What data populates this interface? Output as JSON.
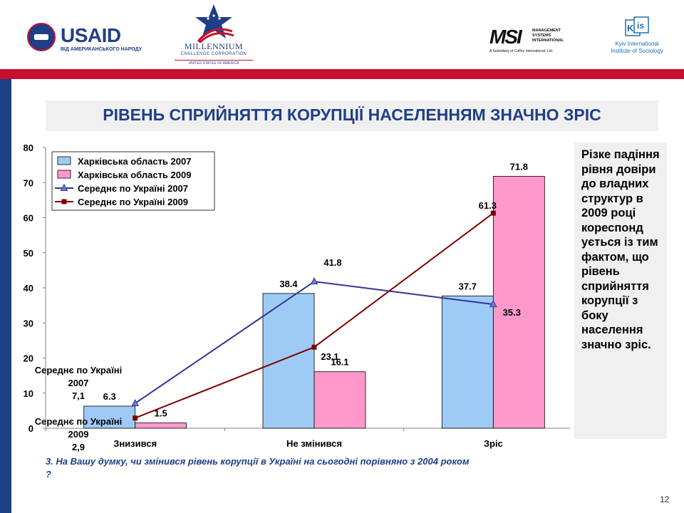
{
  "header": {
    "usaid": {
      "word": "USAID",
      "subtitle": "ВІД АМЕРИКАНСЬКОГО НАРОДУ"
    },
    "mcc": {
      "name": "MILLENNIUM",
      "line2": "CHALLENGE CORPORATION",
      "line3": "UNITED STATES OF AMERICA"
    },
    "msi": {
      "word": "MSI",
      "side": [
        "MANAGEMENT",
        "SYSTEMS",
        "INTERNATIONAL"
      ],
      "subtitle": "A Subsidiary of Coffey International, Ltd."
    },
    "kiis": {
      "logo": "KIIS",
      "text_line1": "Kyiv International",
      "text_line2": "Institute of Sociology"
    }
  },
  "slide_title": "РІВЕНЬ СПРИЙНЯТТЯ КОРУПЦІЇ НАСЕЛЕННЯМ ЗНАЧНО ЗРІС",
  "side_note": "Різке падіння рівня довіри до владних структур в 2009 році кореспонд ується із тим фактом, що рівень сприйняття корупції з боку населення значно зріс.",
  "question": "3. На Вашу думку, чи змінився рівень корупції в Україні на сьогодні порівняно з 2004 роком ?",
  "page_number": "12",
  "colors": {
    "navy": "#1f3f86",
    "red": "#c8102e",
    "bar_2007": "#9ecbf5",
    "bar_2009": "#ff99cc",
    "line_2007": "#333399",
    "line_2009": "#800000"
  },
  "chart_data": {
    "type": "bar",
    "categories": [
      "Знизився",
      "Не змінився",
      "Зріс"
    ],
    "ylim": [
      0,
      80
    ],
    "yticks": [
      0,
      10,
      20,
      30,
      40,
      50,
      60,
      70,
      80
    ],
    "grid": false,
    "legend_position": "top-left",
    "series": [
      {
        "name": "Харківська область 2007",
        "kind": "bar",
        "values": [
          6.3,
          38.4,
          37.7
        ],
        "labels": [
          "6.3",
          "38.4",
          "37.7"
        ],
        "color": "#9ecbf5"
      },
      {
        "name": "Харківська область 2009",
        "kind": "bar",
        "values": [
          1.5,
          16.1,
          71.8
        ],
        "labels": [
          "1.5",
          "16.1",
          "71.8"
        ],
        "color": "#ff99cc"
      },
      {
        "name": "Середнє по Україні 2007",
        "kind": "line",
        "values": [
          7.1,
          41.8,
          35.3
        ],
        "labels": [
          "",
          "41.8",
          "35.3"
        ],
        "color": "#333399",
        "marker": "triangle"
      },
      {
        "name": "Середнє по Україні 2009",
        "kind": "line",
        "values": [
          2.9,
          23.1,
          61.3
        ],
        "labels": [
          "",
          "23.1",
          "61.3"
        ],
        "color": "#800000",
        "marker": "square"
      }
    ],
    "annotations": {
      "ua2007": [
        "Середнє по Україні",
        "2007",
        "7,1"
      ],
      "ua2009": [
        "Середнє по Україні",
        "2009",
        "2,9"
      ]
    }
  }
}
